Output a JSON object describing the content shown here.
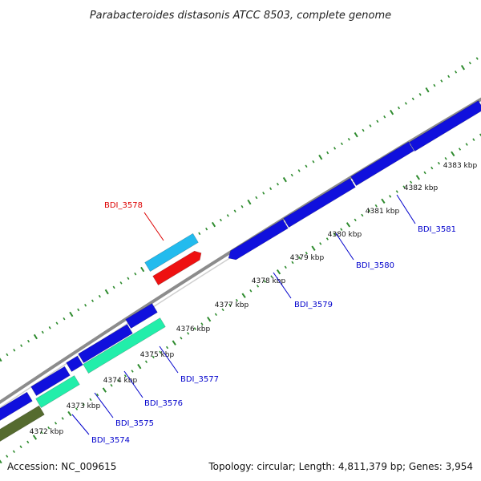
{
  "title": "Parabacteroides distasonis ATCC 8503, complete genome",
  "footer": {
    "accession": "Accession: NC_009615",
    "summary": "Topology: circular; Length: 4,811,379 bp; Genes: 3,954"
  },
  "colors": {
    "backbone": "#8c8c8c",
    "tick": "#2e8b2e",
    "label_line_blue": "#0000cc",
    "label_line_red": "#dd0000"
  },
  "ticks": [
    "4372 kbp",
    "4373 kbp",
    "4374 kbp",
    "4375 kbp",
    "4376 kbp",
    "4377 kbp",
    "4378 kbp",
    "4379 kbp",
    "4380 kbp",
    "4381 kbp",
    "4382 kbp",
    "4383 kbp"
  ],
  "gene_labels": [
    {
      "text": "BDI_3574",
      "color": "#0000cc"
    },
    {
      "text": "BDI_3575",
      "color": "#0000cc"
    },
    {
      "text": "BDI_3576",
      "color": "#0000cc"
    },
    {
      "text": "BDI_3577",
      "color": "#0000cc"
    },
    {
      "text": "BDI_3578",
      "color": "#dd0000"
    },
    {
      "text": "BDI_3579",
      "color": "#0000cc"
    },
    {
      "text": "BDI_3580",
      "color": "#0000cc"
    },
    {
      "text": "BDI_3581",
      "color": "#0000cc"
    }
  ],
  "feature_colors": {
    "cds_blue": "#1010dd",
    "cds_teal": "#22eeaa",
    "cds_olive": "#556b2f",
    "cds_cyan": "#22bbee",
    "cds_red": "#ee1111"
  }
}
